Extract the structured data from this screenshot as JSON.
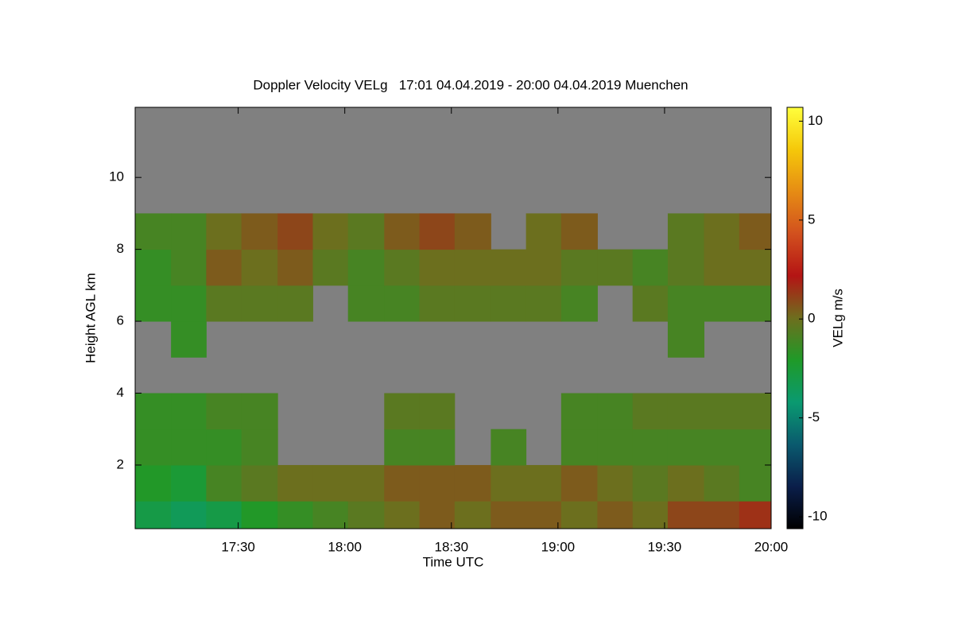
{
  "chart_data": {
    "type": "heatmap",
    "title": "Doppler Velocity VELg   17:01 04.04.2019 - 20:00 04.04.2019 Muenchen",
    "xlabel": "Time UTC",
    "ylabel": "Height AGL km",
    "colorbar_label": "VELg m/s",
    "xlim": [
      17.0167,
      20.0
    ],
    "xticks": [
      {
        "value": 17.5,
        "label": "17:30"
      },
      {
        "value": 18.0,
        "label": "18:00"
      },
      {
        "value": 18.5,
        "label": "18:30"
      },
      {
        "value": 19.0,
        "label": "19:00"
      },
      {
        "value": 19.5,
        "label": "19:30"
      },
      {
        "value": 20.0,
        "label": "20:00"
      }
    ],
    "ylim": [
      0.23,
      11.95
    ],
    "yticks": [
      2,
      4,
      6,
      8,
      10
    ],
    "clim": [
      -10.6,
      10.7
    ],
    "cticks": [
      -10,
      -5,
      0,
      5,
      10
    ],
    "colormap": [
      "#000000",
      "#0a1e4a",
      "#0a5a6e",
      "#0a9a70",
      "#1f9a28",
      "#6e6e1e",
      "#b41414",
      "#d2501e",
      "#e68c14",
      "#f5c80a",
      "#ffff3c"
    ],
    "missing_color": "#808080",
    "x": [
      17.1,
      17.27,
      17.43,
      17.6,
      17.77,
      17.93,
      18.1,
      18.27,
      18.43,
      18.6,
      18.77,
      18.93,
      19.1,
      19.27,
      19.43,
      19.6,
      19.77,
      19.93
    ],
    "y": [
      0.5,
      1.5,
      2.5,
      3.5,
      4.5,
      5.5,
      6.5,
      7.5,
      8.5,
      9.5,
      10.5,
      11.5
    ],
    "z": [
      [
        -3,
        -3.5,
        -3,
        -2,
        -1.5,
        -1,
        -0.5,
        0,
        0.5,
        0,
        0.5,
        0.5,
        0,
        0.5,
        0,
        1,
        1,
        1.5
      ],
      [
        -2,
        -2.5,
        -1,
        -0.5,
        0,
        0,
        0,
        0.5,
        0.5,
        0.5,
        0,
        0,
        0.5,
        0,
        -0.5,
        0,
        -0.5,
        -1
      ],
      [
        -1.5,
        -1.5,
        -1.5,
        -1,
        null,
        null,
        null,
        -1,
        -1,
        null,
        -1,
        null,
        -1,
        -1,
        -1,
        -1,
        -1,
        -1
      ],
      [
        -1.5,
        -1.5,
        -1,
        -1,
        null,
        null,
        null,
        -0.5,
        -0.5,
        null,
        null,
        null,
        -1,
        -1,
        -0.5,
        -0.5,
        -0.5,
        -0.5
      ],
      [
        null,
        null,
        null,
        null,
        null,
        null,
        null,
        null,
        null,
        null,
        null,
        null,
        null,
        null,
        null,
        null,
        null,
        null
      ],
      [
        null,
        -1.5,
        null,
        null,
        null,
        null,
        null,
        null,
        null,
        null,
        null,
        null,
        null,
        null,
        null,
        -1,
        null,
        null
      ],
      [
        -1.5,
        -1.5,
        -0.5,
        -0.5,
        -0.5,
        null,
        -1,
        -1,
        -0.5,
        -0.5,
        -0.5,
        -0.5,
        -1,
        null,
        -0.5,
        -1,
        -1,
        -1
      ],
      [
        -1.5,
        -1,
        0.5,
        0,
        0.5,
        -0.5,
        -1,
        -0.5,
        0,
        0,
        0,
        0,
        -0.5,
        -0.5,
        -1,
        -0.5,
        0,
        0
      ],
      [
        -1,
        -1,
        0,
        0.5,
        1,
        0,
        -0.5,
        0.5,
        1,
        0.5,
        null,
        0,
        0.5,
        null,
        null,
        -0.5,
        0,
        0.5
      ],
      [
        null,
        null,
        null,
        null,
        null,
        null,
        null,
        null,
        null,
        null,
        null,
        null,
        null,
        null,
        null,
        null,
        null,
        null
      ],
      [
        null,
        null,
        null,
        null,
        null,
        null,
        null,
        null,
        null,
        null,
        null,
        null,
        null,
        null,
        null,
        null,
        null,
        null
      ],
      [
        null,
        null,
        null,
        null,
        null,
        null,
        null,
        null,
        null,
        null,
        null,
        null,
        null,
        null,
        null,
        null,
        null,
        null
      ]
    ]
  }
}
